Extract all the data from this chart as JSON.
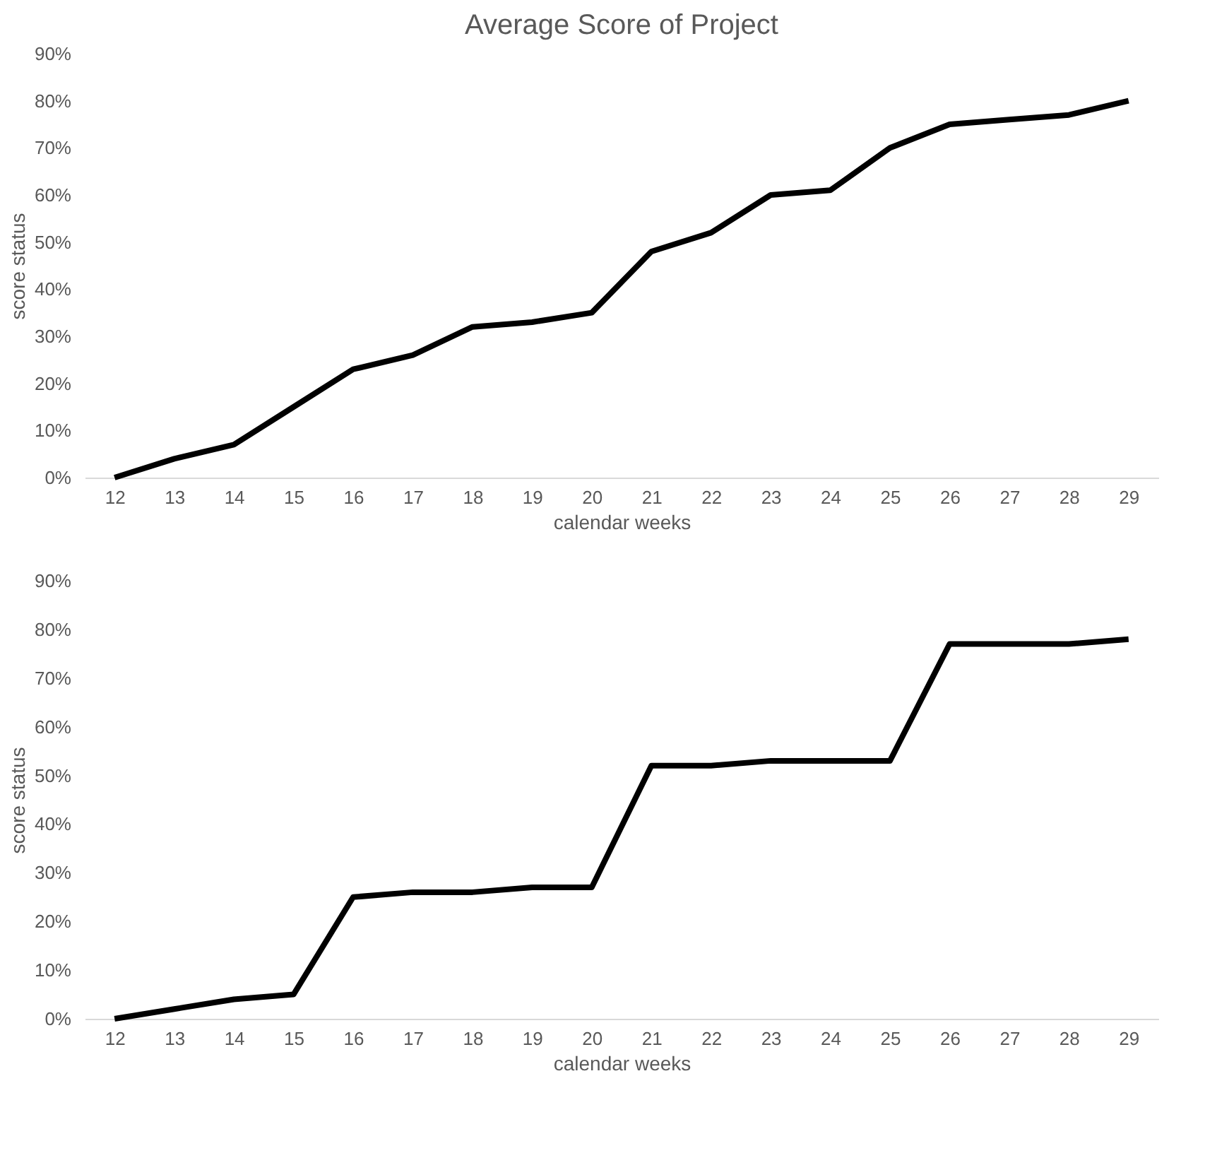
{
  "chart_data": [
    {
      "type": "line",
      "title": "Average Score of Project",
      "xlabel": "calendar weeks",
      "ylabel": "score status",
      "color": "#000000",
      "categories": [
        "12",
        "13",
        "14",
        "15",
        "16",
        "17",
        "18",
        "19",
        "20",
        "21",
        "22",
        "23",
        "24",
        "25",
        "26",
        "27",
        "28",
        "29"
      ],
      "values": [
        0,
        4,
        7,
        15,
        23,
        26,
        32,
        33,
        35,
        48,
        52,
        60,
        61,
        70,
        75,
        76,
        77,
        80
      ],
      "ylim": [
        0,
        90
      ],
      "yticks": [
        {
          "value": 0,
          "label": "0%"
        },
        {
          "value": 10,
          "label": "10%"
        },
        {
          "value": 20,
          "label": "20%"
        },
        {
          "value": 30,
          "label": "30%"
        },
        {
          "value": 40,
          "label": "40%"
        },
        {
          "value": 50,
          "label": "50%"
        },
        {
          "value": 60,
          "label": "60%"
        },
        {
          "value": 70,
          "label": "70%"
        },
        {
          "value": 80,
          "label": "80%"
        },
        {
          "value": 90,
          "label": "90%"
        }
      ]
    },
    {
      "type": "line",
      "xlabel": "calendar weeks",
      "ylabel": "score status",
      "color": "#000000",
      "categories": [
        "12",
        "13",
        "14",
        "15",
        "16",
        "17",
        "18",
        "19",
        "20",
        "21",
        "22",
        "23",
        "24",
        "25",
        "26",
        "27",
        "28",
        "29"
      ],
      "values": [
        0,
        2,
        4,
        5,
        25,
        26,
        26,
        27,
        27,
        52,
        52,
        53,
        53,
        53,
        77,
        77,
        77,
        78
      ],
      "ylim": [
        0,
        90
      ],
      "yticks": [
        {
          "value": 0,
          "label": "0%"
        },
        {
          "value": 10,
          "label": "10%"
        },
        {
          "value": 20,
          "label": "20%"
        },
        {
          "value": 30,
          "label": "30%"
        },
        {
          "value": 40,
          "label": "40%"
        },
        {
          "value": 50,
          "label": "50%"
        },
        {
          "value": 60,
          "label": "60%"
        },
        {
          "value": 70,
          "label": "70%"
        },
        {
          "value": 80,
          "label": "80%"
        },
        {
          "value": 90,
          "label": "90%"
        }
      ]
    }
  ]
}
